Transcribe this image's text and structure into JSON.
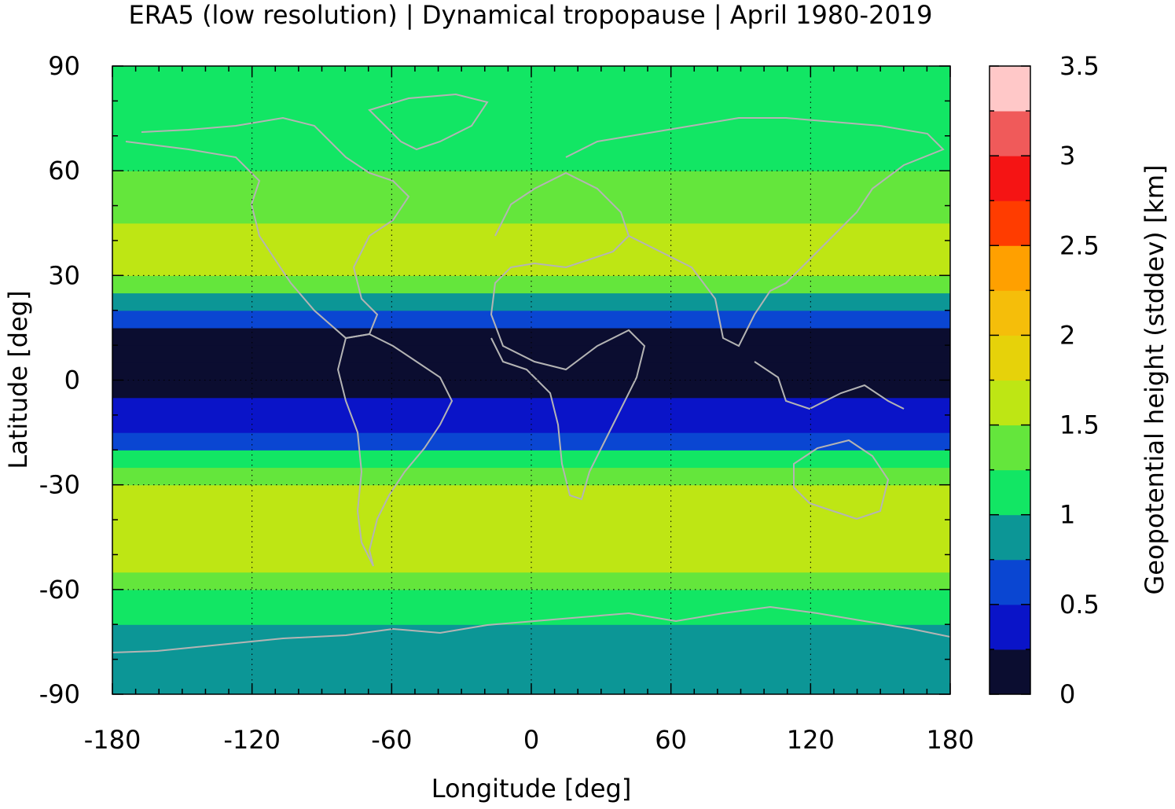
{
  "chart_data": {
    "type": "heatmap",
    "title": "ERA5 (low resolution) | Dynamical tropopause | April 1980-2019",
    "xlabel": "Longitude [deg]",
    "ylabel": "Latitude [deg]",
    "colorbar_label": "Geopotential height (stddev) [km]",
    "xlim": [
      -180,
      180
    ],
    "ylim": [
      -90,
      90
    ],
    "x_ticks": [
      -180,
      -120,
      -60,
      0,
      60,
      120,
      180
    ],
    "y_ticks": [
      -90,
      -60,
      -30,
      0,
      30,
      60,
      90
    ],
    "x_tick_labels": [
      "-180",
      "-120",
      "-60",
      "0",
      "60",
      "120",
      "180"
    ],
    "y_tick_labels": [
      "-90",
      "-60",
      "-30",
      "0",
      "30",
      "60",
      "90"
    ],
    "grid": true,
    "colorbar": {
      "range": [
        0,
        3.5
      ],
      "step": 0.25,
      "tick_values": [
        0,
        0.5,
        1,
        1.5,
        2,
        2.5,
        3,
        3.5
      ],
      "tick_labels": [
        "0",
        "0.5",
        "1",
        "1.5",
        "2",
        "2.5",
        "3",
        "3.5"
      ],
      "colors": [
        "#0b0d30",
        "#0a14c8",
        "#0a46d2",
        "#0c9696",
        "#12e664",
        "#64e63c",
        "#bee614",
        "#e6d20a",
        "#f5be0a",
        "#ffa000",
        "#ff3c00",
        "#f51414",
        "#f05a5a",
        "#ffc8c8"
      ]
    },
    "zonal_profile": {
      "lat": [
        -90,
        -85,
        -80,
        -75,
        -70,
        -65,
        -60,
        -55,
        -50,
        -45,
        -40,
        -35,
        -30,
        -25,
        -20,
        -15,
        -10,
        -5,
        0,
        5,
        10,
        15,
        20,
        25,
        30,
        35,
        40,
        45,
        50,
        55,
        60,
        65,
        70,
        75,
        80,
        85,
        90
      ],
      "stddev_km": [
        0.8,
        0.8,
        0.85,
        0.9,
        1.0,
        1.1,
        1.3,
        1.45,
        1.6,
        1.7,
        1.7,
        1.65,
        1.55,
        1.3,
        0.9,
        0.5,
        0.3,
        0.2,
        0.2,
        0.15,
        0.15,
        0.3,
        0.7,
        1.2,
        1.55,
        1.7,
        1.6,
        1.5,
        1.45,
        1.35,
        1.25,
        1.15,
        1.1,
        1.05,
        1.0,
        1.0,
        1.0
      ]
    }
  }
}
